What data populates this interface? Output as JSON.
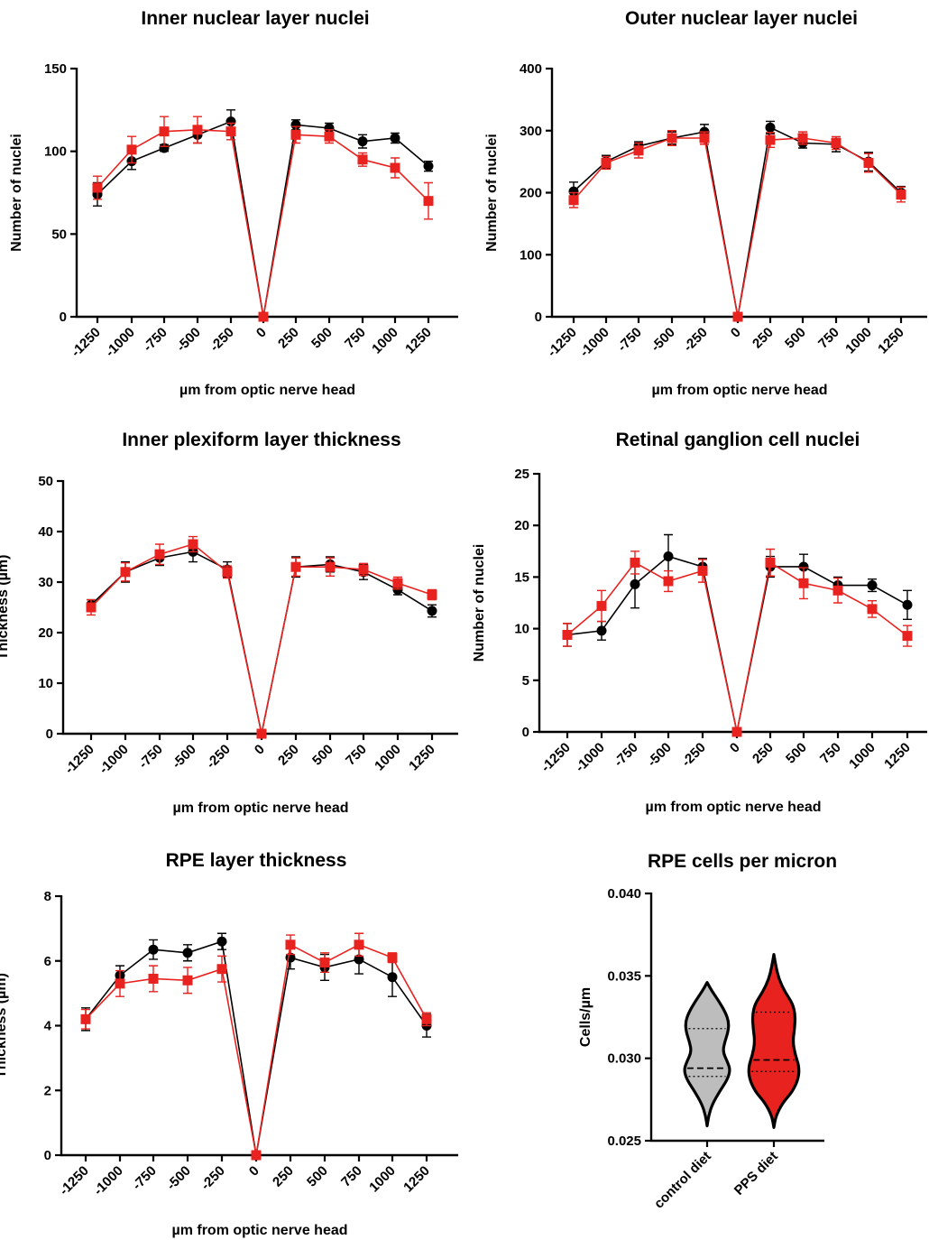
{
  "colors": {
    "control": "#000000",
    "pps": "#e8231f",
    "violin_control": "#bdbdbd",
    "violin_pps": "#e8231f"
  },
  "chart_data": [
    {
      "type": "line",
      "title": "Inner nuclear layer nuclei",
      "xlabel": "µm from optic nerve head",
      "ylabel": "Number of nuclei",
      "ylim": [
        0,
        150
      ],
      "yticks": [
        "0",
        "50",
        "100",
        "150"
      ],
      "x": [
        "-1250",
        "-1000",
        "-750",
        "-500",
        "-250",
        "0",
        "250",
        "500",
        "750",
        "1000",
        "1250"
      ],
      "series": [
        {
          "marker": "circle",
          "values": [
            74,
            94,
            102,
            110,
            118,
            0,
            116,
            114,
            106,
            108,
            91
          ],
          "errors": [
            7,
            5,
            2,
            5,
            7,
            0,
            3,
            3,
            4,
            3,
            3
          ]
        },
        {
          "marker": "square",
          "values": [
            78,
            101,
            112,
            113,
            112,
            0,
            110,
            109,
            95,
            90,
            70
          ],
          "errors": [
            7,
            8,
            9,
            8,
            5,
            0,
            5,
            4,
            4,
            6,
            11
          ]
        }
      ]
    },
    {
      "type": "line",
      "title": "Outer nuclear layer nuclei",
      "xlabel": "µm from optic nerve head",
      "ylabel": "Number of nuclei",
      "ylim": [
        0,
        400
      ],
      "yticks": [
        "0",
        "100",
        "200",
        "300",
        "400"
      ],
      "x": [
        "-1250",
        "-1000",
        "-750",
        "-500",
        "-250",
        "0",
        "250",
        "500",
        "750",
        "1000",
        "1250"
      ],
      "series": [
        {
          "marker": "circle",
          "values": [
            202,
            250,
            275,
            288,
            298,
            0,
            305,
            280,
            278,
            250,
            200
          ],
          "errors": [
            15,
            10,
            7,
            10,
            12,
            0,
            10,
            8,
            12,
            15,
            10
          ]
        },
        {
          "marker": "square",
          "values": [
            188,
            248,
            268,
            288,
            288,
            0,
            285,
            288,
            280,
            248,
            197
          ],
          "errors": [
            12,
            10,
            12,
            12,
            10,
            0,
            12,
            10,
            10,
            15,
            12
          ]
        }
      ]
    },
    {
      "type": "line",
      "title": "Inner plexiform layer thickness",
      "xlabel": "µm from optic nerve head",
      "ylabel": "Thickness (µm)",
      "ylim": [
        0,
        50
      ],
      "yticks": [
        "0",
        "10",
        "20",
        "30",
        "40",
        "50"
      ],
      "x": [
        "-1250",
        "-1000",
        "-750",
        "-500",
        "-250",
        "0",
        "250",
        "500",
        "750",
        "1000",
        "1250"
      ],
      "series": [
        {
          "marker": "circle",
          "values": [
            25.5,
            32,
            34.8,
            36,
            32.5,
            0,
            33,
            33.5,
            32,
            28.5,
            24.3
          ],
          "errors": [
            1,
            2,
            1.5,
            2,
            1.5,
            0,
            2,
            1.5,
            1.5,
            1,
            1.2
          ]
        },
        {
          "marker": "square",
          "values": [
            25,
            32,
            35.5,
            37.5,
            32,
            0,
            33,
            33,
            32.5,
            29.8,
            27.5
          ],
          "errors": [
            1.5,
            1.8,
            2,
            1.5,
            1.2,
            0,
            1.8,
            1.8,
            1.2,
            1.2,
            1
          ]
        }
      ]
    },
    {
      "type": "line",
      "title": "Retinal ganglion cell nuclei",
      "xlabel": "µm from optic nerve head",
      "ylabel": "Number of nuclei",
      "ylim": [
        0,
        25
      ],
      "yticks": [
        "0",
        "5",
        "10",
        "15",
        "20",
        "25"
      ],
      "x": [
        "-1250",
        "-1000",
        "-750",
        "-500",
        "-250",
        "0",
        "250",
        "500",
        "750",
        "1000",
        "1250"
      ],
      "series": [
        {
          "marker": "circle",
          "values": [
            9.4,
            9.8,
            14.3,
            17,
            16,
            0,
            16,
            16,
            14.2,
            14.2,
            12.3
          ],
          "errors": [
            1.1,
            0.9,
            2.3,
            2.1,
            0.8,
            0,
            1,
            1.2,
            0.8,
            0.6,
            1.4
          ]
        },
        {
          "marker": "square",
          "values": [
            9.4,
            12.2,
            16.4,
            14.6,
            15.6,
            0,
            16.4,
            14.4,
            13.7,
            11.9,
            9.3
          ],
          "errors": [
            1.1,
            1.5,
            1.1,
            1,
            1.1,
            0,
            1.3,
            1.5,
            1.2,
            0.8,
            1
          ]
        }
      ]
    },
    {
      "type": "line",
      "title": "RPE layer thickness",
      "xlabel": "µm from optic nerve head",
      "ylabel": "Thickness (µm)",
      "ylim": [
        0,
        8
      ],
      "yticks": [
        "0",
        "2",
        "4",
        "6",
        "8"
      ],
      "x": [
        "-1250",
        "-1000",
        "-750",
        "-500",
        "-250",
        "0",
        "250",
        "500",
        "750",
        "1000",
        "1250"
      ],
      "series": [
        {
          "marker": "circle",
          "values": [
            4.2,
            5.55,
            6.35,
            6.25,
            6.6,
            0,
            6.1,
            5.8,
            6.05,
            5.5,
            4
          ],
          "errors": [
            0.35,
            0.3,
            0.3,
            0.25,
            0.25,
            0,
            0.35,
            0.4,
            0.45,
            0.6,
            0.35
          ]
        },
        {
          "marker": "square",
          "values": [
            4.2,
            5.3,
            5.45,
            5.4,
            5.75,
            0,
            6.5,
            5.95,
            6.5,
            6.1,
            4.2
          ],
          "errors": [
            0.3,
            0.4,
            0.4,
            0.4,
            0.4,
            0,
            0.3,
            0.3,
            0.35,
            0.15,
            0.2
          ]
        }
      ]
    },
    {
      "type": "violin",
      "title": "RPE cells per micron",
      "ylabel": "Cells/µm",
      "ylim": [
        0.025,
        0.04
      ],
      "yticks": [
        "0.025",
        "0.030",
        "0.035",
        "0.040"
      ],
      "categories": [
        "control diet",
        "PPS diet"
      ],
      "groups": [
        {
          "min": 0.0259,
          "max": 0.0346,
          "median": 0.0294,
          "q1": 0.0289,
          "q3": 0.0318,
          "profile": [
            [
              0.0259,
              0
            ],
            [
              0.0265,
              0.06
            ],
            [
              0.0272,
              0.2
            ],
            [
              0.028,
              0.5
            ],
            [
              0.0287,
              0.8
            ],
            [
              0.0293,
              0.92
            ],
            [
              0.0298,
              0.8
            ],
            [
              0.0304,
              0.62
            ],
            [
              0.031,
              0.7
            ],
            [
              0.0316,
              0.83
            ],
            [
              0.0322,
              0.86
            ],
            [
              0.0328,
              0.72
            ],
            [
              0.0335,
              0.45
            ],
            [
              0.0341,
              0.18
            ],
            [
              0.0346,
              0
            ]
          ]
        },
        {
          "min": 0.0258,
          "max": 0.0363,
          "median": 0.0299,
          "q1": 0.0292,
          "q3": 0.0328,
          "profile": [
            [
              0.0258,
              0
            ],
            [
              0.0265,
              0.08
            ],
            [
              0.0273,
              0.35
            ],
            [
              0.028,
              0.75
            ],
            [
              0.0288,
              0.98
            ],
            [
              0.0295,
              1.0
            ],
            [
              0.0302,
              0.85
            ],
            [
              0.031,
              0.75
            ],
            [
              0.0318,
              0.82
            ],
            [
              0.0326,
              0.85
            ],
            [
              0.0333,
              0.75
            ],
            [
              0.034,
              0.45
            ],
            [
              0.0348,
              0.2
            ],
            [
              0.0356,
              0.08
            ],
            [
              0.0363,
              0
            ]
          ]
        }
      ]
    }
  ]
}
